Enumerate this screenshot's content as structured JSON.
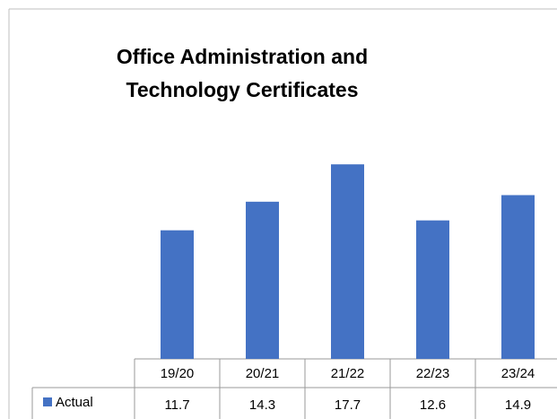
{
  "chart_data": {
    "type": "bar",
    "title": "Office Administration and Technology Certificates",
    "categories": [
      "19/20",
      "20/21",
      "21/22",
      "22/23",
      "23/24"
    ],
    "series": [
      {
        "name": "Actual",
        "color": "#4472c4",
        "values": [
          11.7,
          14.3,
          17.7,
          12.6,
          14.9
        ]
      }
    ],
    "ylim": [
      0,
      20
    ]
  }
}
